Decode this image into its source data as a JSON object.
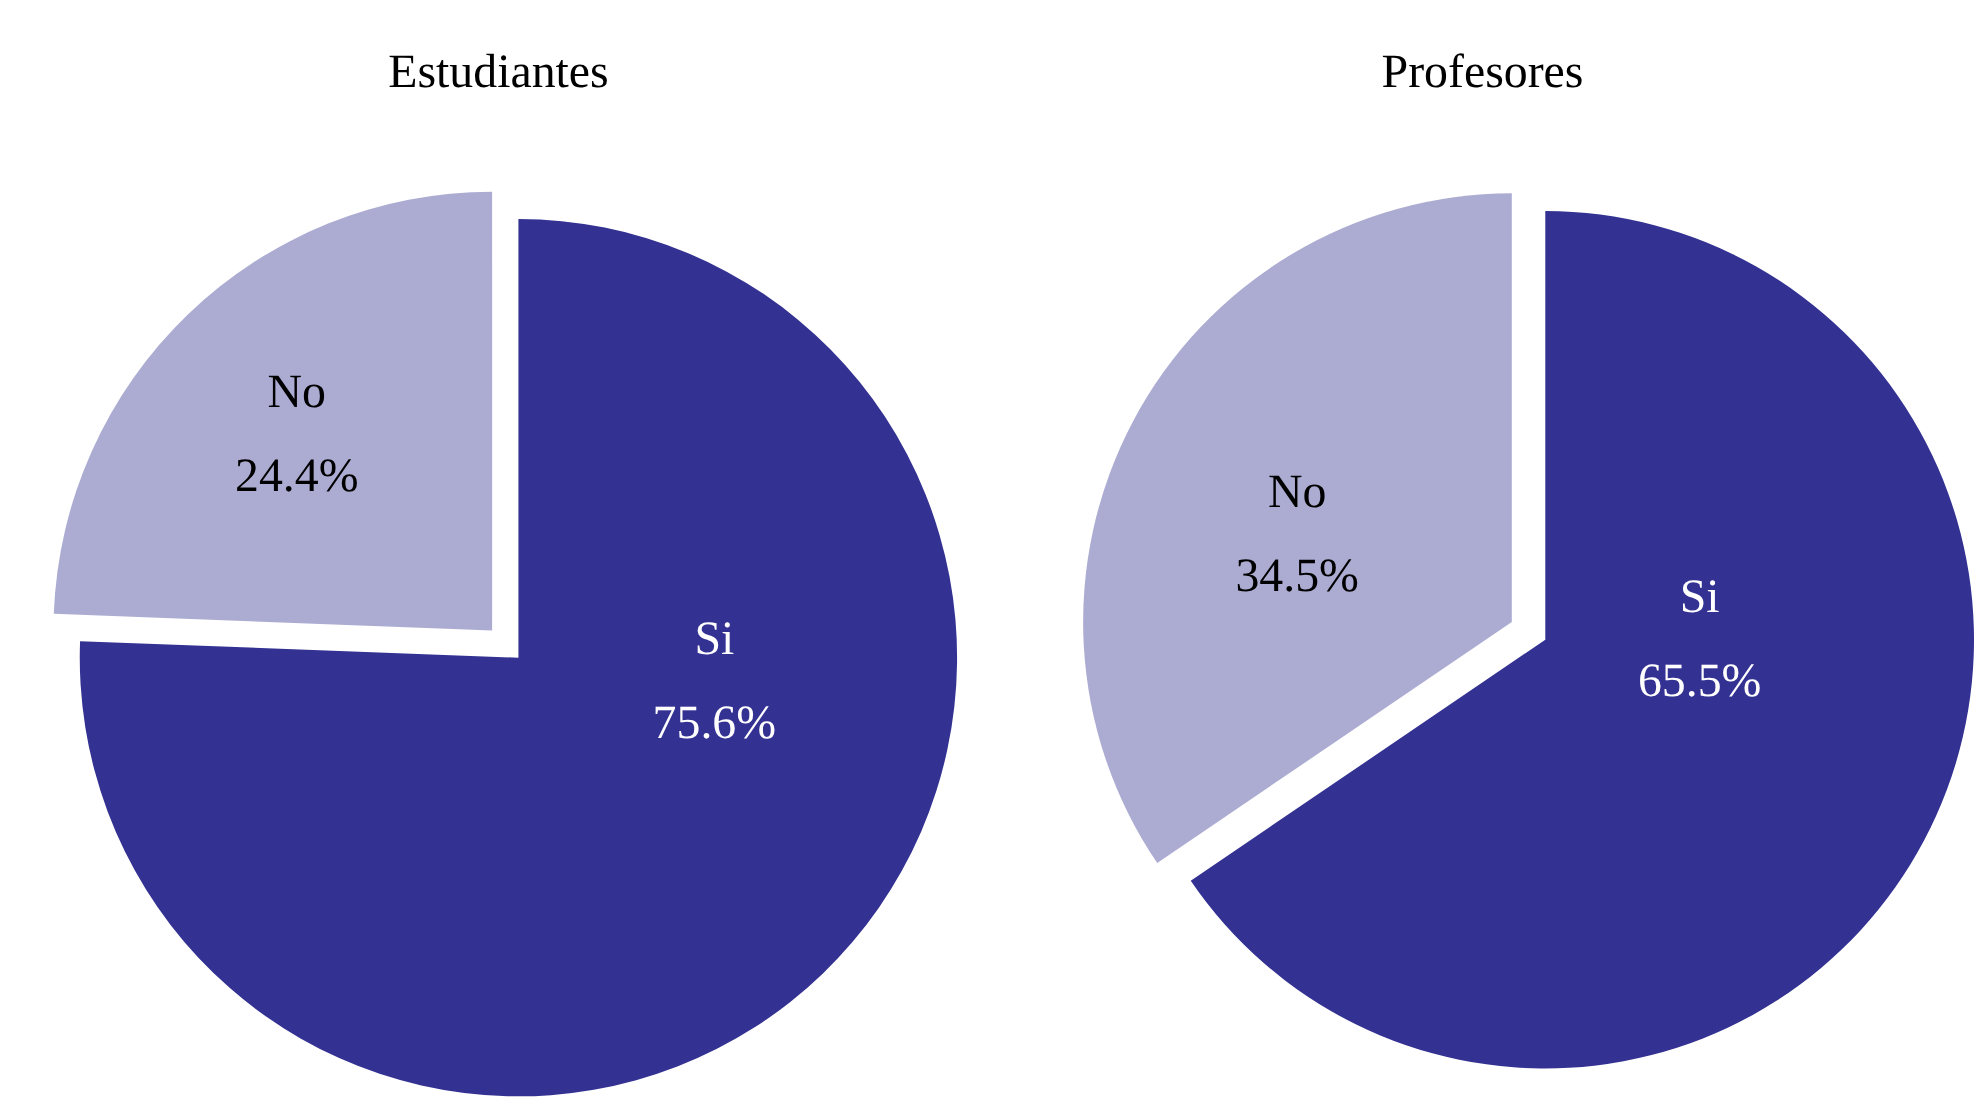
{
  "chart_data": [
    {
      "type": "pie",
      "title": "Estudiantes",
      "categories": [
        "Si",
        "No"
      ],
      "values": [
        75.6,
        24.4
      ],
      "colors": [
        "#333192",
        "#acacd3"
      ],
      "value_labels": [
        "75.6%",
        "24.4%"
      ]
    },
    {
      "type": "pie",
      "title": "Profesores",
      "categories": [
        "Si",
        "No"
      ],
      "values": [
        65.5,
        34.5
      ],
      "colors": [
        "#333192",
        "#acacd3"
      ],
      "value_labels": [
        "65.5%",
        "34.5%"
      ]
    }
  ]
}
